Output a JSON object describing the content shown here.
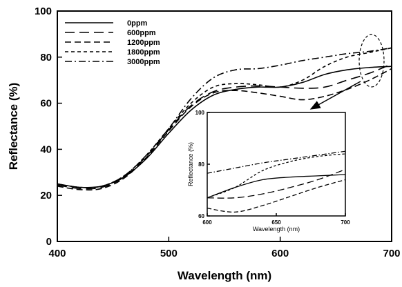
{
  "chart_data": [
    {
      "type": "line",
      "xlabel": "Wavelength (nm)",
      "ylabel": "Reflectance (%)",
      "xlim": [
        400,
        700
      ],
      "ylim": [
        0,
        100
      ],
      "xticks": [
        400,
        500,
        600,
        700
      ],
      "yticks": [
        0,
        20,
        40,
        60,
        80,
        100
      ],
      "legend_position": "top-left",
      "grid": false,
      "series": [
        {
          "name": "0ppm",
          "dash": "solid",
          "points": [
            [
              400,
              25
            ],
            [
              420,
              23.5
            ],
            [
              440,
              24
            ],
            [
              460,
              28
            ],
            [
              480,
              36
            ],
            [
              500,
              47
            ],
            [
              520,
              57
            ],
            [
              540,
              63.5
            ],
            [
              560,
              66
            ],
            [
              580,
              67
            ],
            [
              600,
              67
            ],
            [
              620,
              69
            ],
            [
              640,
              72.5
            ],
            [
              660,
              74.5
            ],
            [
              680,
              75.5
            ],
            [
              700,
              76
            ]
          ]
        },
        {
          "name": "600ppm",
          "dash": "long",
          "points": [
            [
              400,
              24.5
            ],
            [
              420,
              23
            ],
            [
              440,
              23.5
            ],
            [
              460,
              28
            ],
            [
              480,
              37
            ],
            [
              500,
              48.5
            ],
            [
              520,
              59
            ],
            [
              540,
              65
            ],
            [
              560,
              67
            ],
            [
              580,
              67.5
            ],
            [
              600,
              67
            ],
            [
              620,
              66.5
            ],
            [
              640,
              67
            ],
            [
              660,
              70
            ],
            [
              680,
              73
            ],
            [
              700,
              77
            ]
          ]
        },
        {
          "name": "1200ppm",
          "dash": "medium",
          "points": [
            [
              400,
              24
            ],
            [
              420,
              22.5
            ],
            [
              440,
              23
            ],
            [
              460,
              27.5
            ],
            [
              480,
              36.5
            ],
            [
              500,
              48
            ],
            [
              520,
              58.5
            ],
            [
              540,
              64.5
            ],
            [
              560,
              65.5
            ],
            [
              580,
              64.5
            ],
            [
              600,
              63
            ],
            [
              620,
              61.5
            ],
            [
              640,
              63
            ],
            [
              660,
              66
            ],
            [
              680,
              70
            ],
            [
              700,
              75
            ]
          ]
        },
        {
          "name": "1800ppm",
          "dash": "short",
          "points": [
            [
              400,
              25
            ],
            [
              420,
              23.5
            ],
            [
              440,
              24
            ],
            [
              460,
              28.5
            ],
            [
              480,
              37.5
            ],
            [
              500,
              49
            ],
            [
              520,
              60
            ],
            [
              540,
              67
            ],
            [
              560,
              68.5
            ],
            [
              580,
              68
            ],
            [
              600,
              67
            ],
            [
              620,
              70
            ],
            [
              640,
              76
            ],
            [
              660,
              80
            ],
            [
              680,
              82
            ],
            [
              700,
              84
            ]
          ]
        },
        {
          "name": "3000ppm",
          "dash": "dashdot",
          "points": [
            [
              400,
              25
            ],
            [
              420,
              23.5
            ],
            [
              440,
              24
            ],
            [
              460,
              28.5
            ],
            [
              480,
              37.5
            ],
            [
              500,
              49
            ],
            [
              520,
              62
            ],
            [
              540,
              71
            ],
            [
              560,
              74.5
            ],
            [
              580,
              75
            ],
            [
              600,
              76.5
            ],
            [
              620,
              78.5
            ],
            [
              640,
              80
            ],
            [
              660,
              81.5
            ],
            [
              680,
              82.5
            ],
            [
              700,
              84
            ]
          ]
        }
      ]
    },
    {
      "type": "line",
      "xlabel": "Wavelength (nm)",
      "ylabel": "Reflectance (%)",
      "xlim": [
        600,
        700
      ],
      "ylim": [
        60,
        100
      ],
      "xticks": [
        600,
        650,
        700
      ],
      "yticks": [
        60,
        80,
        100
      ],
      "grid": false,
      "series": [
        {
          "name": "0ppm",
          "dash": "solid",
          "points": [
            [
              600,
              67
            ],
            [
              620,
              71
            ],
            [
              640,
              74
            ],
            [
              660,
              75
            ],
            [
              680,
              75.5
            ],
            [
              700,
              76
            ]
          ]
        },
        {
          "name": "600ppm",
          "dash": "long",
          "points": [
            [
              600,
              67
            ],
            [
              620,
              67
            ],
            [
              640,
              68.5
            ],
            [
              660,
              71
            ],
            [
              680,
              74
            ],
            [
              700,
              78
            ]
          ]
        },
        {
          "name": "1200ppm",
          "dash": "medium",
          "points": [
            [
              600,
              63
            ],
            [
              620,
              61.5
            ],
            [
              640,
              64
            ],
            [
              660,
              67.5
            ],
            [
              680,
              71
            ],
            [
              700,
              74
            ]
          ]
        },
        {
          "name": "1800ppm",
          "dash": "short",
          "points": [
            [
              600,
              67
            ],
            [
              620,
              71
            ],
            [
              640,
              77.5
            ],
            [
              660,
              81
            ],
            [
              680,
              83
            ],
            [
              700,
              84
            ]
          ]
        },
        {
          "name": "3000ppm",
          "dash": "dashdot",
          "points": [
            [
              600,
              76.5
            ],
            [
              620,
              78.5
            ],
            [
              640,
              80.5
            ],
            [
              660,
              82
            ],
            [
              680,
              83.5
            ],
            [
              700,
              85
            ]
          ]
        }
      ]
    }
  ]
}
